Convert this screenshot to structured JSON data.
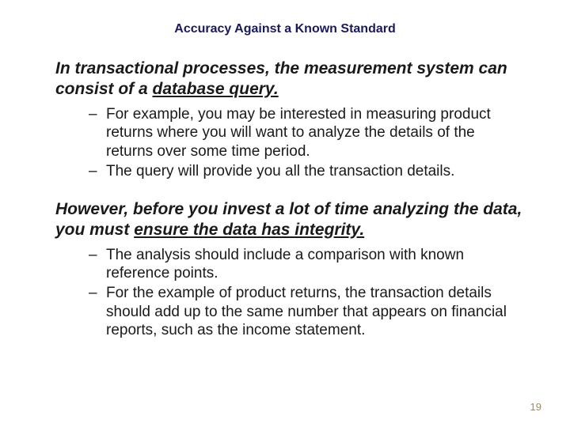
{
  "title": "Accuracy Against a Known Standard",
  "block1": {
    "lead_pre": "In transactional processes, the measurement system can consist of a ",
    "lead_underlined": "database query.",
    "bullets": [
      "For example, you may be interested in measuring product returns where you will want to analyze the details of the returns over some time period.",
      "The query will provide you all the transaction details."
    ]
  },
  "block2": {
    "lead_pre": "However, before you invest a lot of time analyzing the data, you must ",
    "lead_underlined": "ensure the data has integrity.",
    "bullets": [
      "The analysis should include a comparison with known reference points.",
      "For the example of product returns, the transaction details should add up to the same number that appears on financial reports, such as the income statement."
    ]
  },
  "page_number": "19",
  "colors": {
    "title": "#1a1a5a",
    "body": "#1a1a1a",
    "page_num": "#9a8a6a",
    "background": "#ffffff"
  },
  "fonts": {
    "title_size_pt": 12,
    "lead_size_pt": 16,
    "bullet_size_pt": 14,
    "page_num_size_pt": 10
  }
}
